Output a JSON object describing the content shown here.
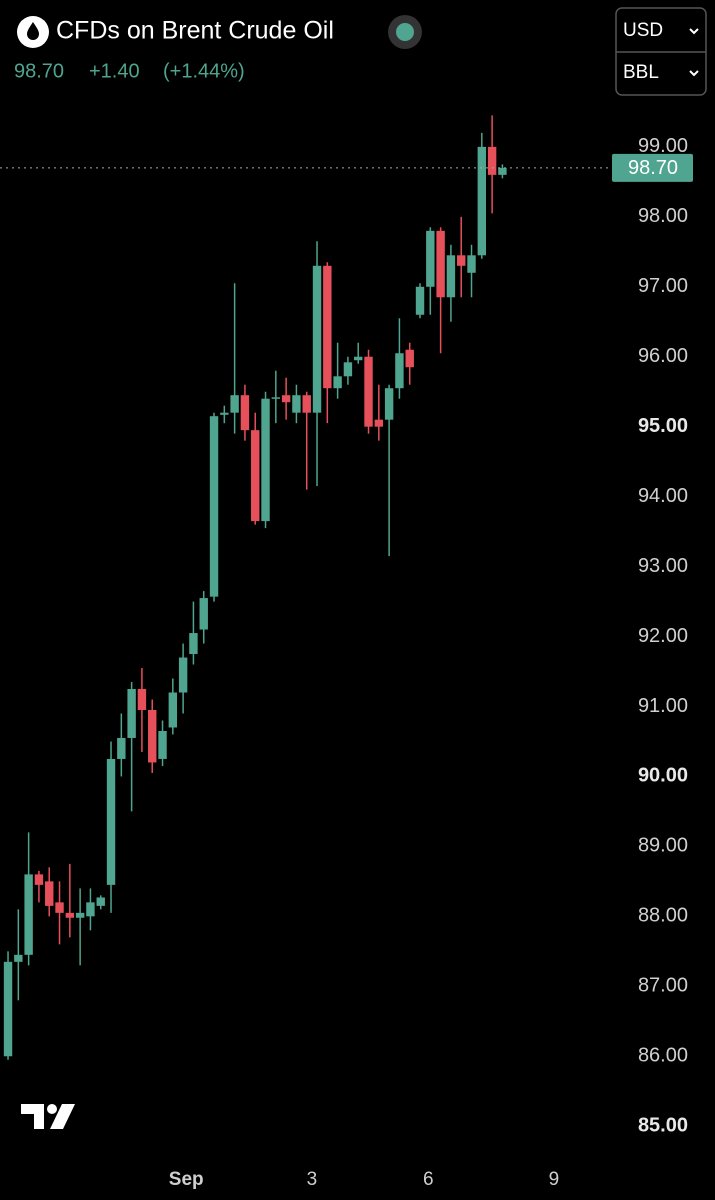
{
  "chart_data": {
    "type": "candlestick",
    "title": "CFDs on Brent Crude Oil",
    "price": {
      "value": 98.7,
      "label": "98.70"
    },
    "change": {
      "value": 1.4,
      "label": "+1.40"
    },
    "change_pct": {
      "value": 1.44,
      "label": "(+1.44%)"
    },
    "selectors": [
      "USD",
      "BBL"
    ],
    "up_color": "#4fa58f",
    "down_color": "#e5505a",
    "x": [
      0,
      1,
      2,
      3,
      4,
      5,
      6,
      7,
      8,
      9,
      10,
      11,
      12,
      13,
      14,
      15,
      16,
      17,
      18,
      19,
      20,
      21,
      22,
      23,
      24,
      25,
      26,
      27,
      28,
      29,
      30,
      31,
      32,
      33,
      34,
      35,
      36,
      37,
      38,
      39,
      40,
      41,
      42,
      43,
      44,
      45,
      46,
      47,
      48
    ],
    "open": [
      86.0,
      87.35,
      87.45,
      88.6,
      88.5,
      88.2,
      88.05,
      87.98,
      88.0,
      88.15,
      88.45,
      90.25,
      90.55,
      91.25,
      90.95,
      90.25,
      90.7,
      91.2,
      91.75,
      92.1,
      92.57,
      95.17,
      95.2,
      95.45,
      94.95,
      93.65,
      95.4,
      95.45,
      95.2,
      95.45,
      95.2,
      97.3,
      95.55,
      95.72,
      95.95,
      96.0,
      95.1,
      95.1,
      95.55,
      96.1,
      96.6,
      97.0,
      97.8,
      96.85,
      97.45,
      97.2,
      97.45,
      99.0,
      98.6
    ],
    "high": [
      87.5,
      88.1,
      89.2,
      88.65,
      88.7,
      88.5,
      88.75,
      88.4,
      88.4,
      88.3,
      90.5,
      90.9,
      91.35,
      91.55,
      91.1,
      90.8,
      91.4,
      91.9,
      92.5,
      92.65,
      95.2,
      95.3,
      97.05,
      95.6,
      95.2,
      95.5,
      95.8,
      95.7,
      95.6,
      95.5,
      97.65,
      97.35,
      96.2,
      96.0,
      96.2,
      96.1,
      95.6,
      95.6,
      96.55,
      96.2,
      97.05,
      97.85,
      97.85,
      97.6,
      98.0,
      97.6,
      99.2,
      99.45,
      98.75
    ],
    "low": [
      85.95,
      86.8,
      87.3,
      88.2,
      88.0,
      87.6,
      87.7,
      87.3,
      87.8,
      88.1,
      88.05,
      90.0,
      89.5,
      90.35,
      90.05,
      90.15,
      90.6,
      90.9,
      91.6,
      91.9,
      92.5,
      95.05,
      94.9,
      94.8,
      93.6,
      93.55,
      95.05,
      95.1,
      95.05,
      94.1,
      94.15,
      95.05,
      95.4,
      95.6,
      95.9,
      94.9,
      94.8,
      93.15,
      95.4,
      95.6,
      96.55,
      96.6,
      96.05,
      96.5,
      96.85,
      96.85,
      97.4,
      98.05,
      98.55
    ],
    "close": [
      87.35,
      87.45,
      88.6,
      88.45,
      88.15,
      88.05,
      87.98,
      88.05,
      88.2,
      88.27,
      90.25,
      90.55,
      91.25,
      90.95,
      90.2,
      90.65,
      91.2,
      91.7,
      92.05,
      92.55,
      95.15,
      95.2,
      95.45,
      94.95,
      93.65,
      95.4,
      95.42,
      95.35,
      95.45,
      95.2,
      97.3,
      95.55,
      95.72,
      95.92,
      96.0,
      95.0,
      95.0,
      95.55,
      96.05,
      95.85,
      97.0,
      97.8,
      96.85,
      97.45,
      97.3,
      97.45,
      99.0,
      98.6,
      98.7
    ],
    "xlim": [
      -0.78,
      57.96
    ],
    "xticks": [
      {
        "value": 17.3,
        "label": "Sep"
      },
      {
        "value": 29.5,
        "label": "3"
      },
      {
        "value": 40.8,
        "label": "6"
      },
      {
        "value": 53,
        "label": "9"
      }
    ],
    "ylim": [
      84.66,
      99.67
    ],
    "yticks": [
      {
        "value": 85,
        "label": "85.00"
      },
      {
        "value": 86,
        "label": "86.00"
      },
      {
        "value": 87,
        "label": "87.00"
      },
      {
        "value": 88,
        "label": "88.00"
      },
      {
        "value": 89,
        "label": "89.00"
      },
      {
        "value": 90,
        "label": "90.00"
      },
      {
        "value": 91,
        "label": "91.00"
      },
      {
        "value": 92,
        "label": "92.00"
      },
      {
        "value": 93,
        "label": "93.00"
      },
      {
        "value": 94,
        "label": "94.00"
      },
      {
        "value": 95,
        "label": "95.00"
      },
      {
        "value": 96,
        "label": "96.00"
      },
      {
        "value": 97,
        "label": "97.00"
      },
      {
        "value": 98,
        "label": "98.00"
      },
      {
        "value": 99,
        "label": "99.00"
      }
    ],
    "grid": false
  }
}
